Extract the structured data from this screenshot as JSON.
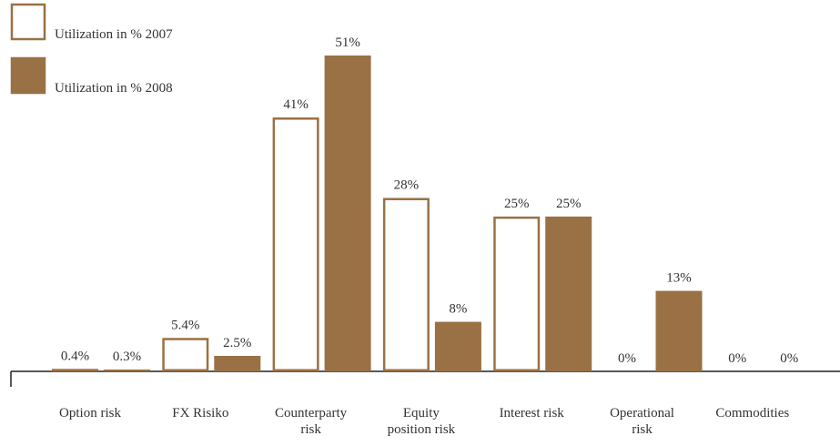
{
  "chart_data": {
    "type": "bar",
    "categories": [
      "Option risk",
      "FX Risiko",
      "Counterparty\nrisk",
      "Equity\nposition risk",
      "Interest risk",
      "Operational\nrisk",
      "Commodities"
    ],
    "series": [
      {
        "name": "Utilization in % 2007",
        "color": "#9a7144",
        "fill": "outline",
        "values": [
          0.4,
          5.4,
          41,
          28,
          25,
          0,
          0
        ],
        "value_labels": [
          "0.4%",
          "5.4%",
          "41%",
          "28%",
          "25%",
          "0%",
          "0%"
        ]
      },
      {
        "name": "Utilization in % 2008",
        "color": "#9a7144",
        "fill": "solid",
        "values": [
          0.3,
          2.5,
          51,
          8,
          25,
          13,
          0
        ],
        "value_labels": [
          "0.3%",
          "2.5%",
          "51%",
          "8%",
          "25%",
          "13%",
          "0%"
        ]
      }
    ],
    "legend": "top-left"
  }
}
